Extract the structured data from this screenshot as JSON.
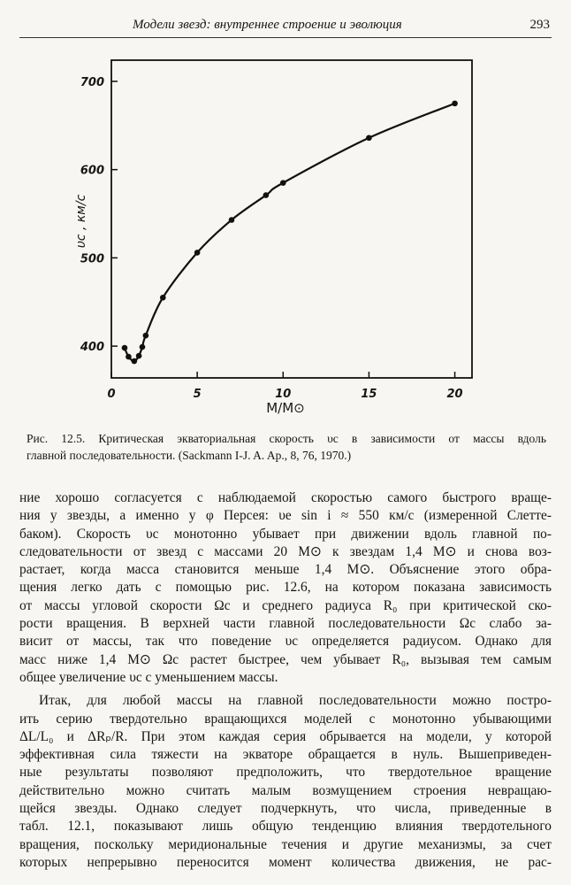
{
  "header": {
    "title": "Модели звезд: внутреннее строение и эволюция",
    "page": "293"
  },
  "chart_data": {
    "type": "line",
    "xlabel": "M/M⊙",
    "ylabel": "υc , км/с",
    "x": [
      0.77,
      1.0,
      1.33,
      1.6,
      1.8,
      2.0,
      3.0,
      5.0,
      7.0,
      9.0,
      10.0,
      15.0,
      20.0
    ],
    "series": [
      {
        "color": "#111111",
        "values": [
          398,
          388,
          383,
          389,
          399,
          412,
          455,
          506,
          543,
          571,
          585,
          636,
          675
        ]
      }
    ],
    "xlim": [
      0,
      21
    ],
    "ylim": [
      364,
      724
    ],
    "xticks": [
      0,
      5,
      10,
      15,
      20
    ],
    "yticks": [
      400,
      500,
      600,
      700
    ]
  },
  "caption": [
    "Рис. 12.5. Критическая экваториальная скорость υc в зависимости от массы вдоль",
    "главной последовательности. (Sackmann I-J. A. Ap., 8, 76, 1970.)"
  ],
  "paragraphs": [
    [
      "ние хорошо согласуется с наблюдаемой скоростью самого быстрого враще-",
      "ния у звезды, а именно у φ Персея: υe sin i ≈ 550 км/с (измеренной Слетте-",
      "баком). Скорость υc монотонно убывает при движении вдоль главной по-",
      "следовательности от звезд с массами 20 M⊙ к звездам 1,4 M⊙ и снова воз-",
      "растает, когда масса становится меньше 1,4 M⊙. Объяснение этого обра-",
      "щения легко дать с помощью рис. 12.6, на котором показана зависимость",
      "от массы угловой скорости Ωc и среднего радиуса R₀ при критической ско-",
      "рости вращения. В верхней части главной последовательности Ωc слабо за-",
      "висит от массы, так что поведение υc определяется радиусом. Однако для",
      "масс ниже 1,4 M⊙ Ωc растет быстрее, чем убывает R₀, вызывая тем самым",
      "общее увеличение υc с уменьшением массы."
    ],
    [
      "Итак, для любой массы на главной последовательности можно постро-",
      "ить серию твердотельно вращающихся моделей с монотонно убывающими",
      "ΔL/L₀ и ΔRₚ/R. При этом каждая серия обрывается на модели, у которой",
      "эффективная сила тяжести на экваторе обращается в нуль. Вышеприведен-",
      "ные результаты позволяют предположить, что твердотельное вращение",
      "действительно можно считать малым возмущением строения невращаю-",
      "щейся звезды. Однако следует подчеркнуть, что числа, приведенные в",
      "табл. 12.1, показывают лишь общую тенденцию влияния твердотельного",
      "вращения, поскольку меридиональные течения и другие механизмы, за счет",
      "которых непрерывно переносится момент количества движения, не рас-"
    ]
  ]
}
